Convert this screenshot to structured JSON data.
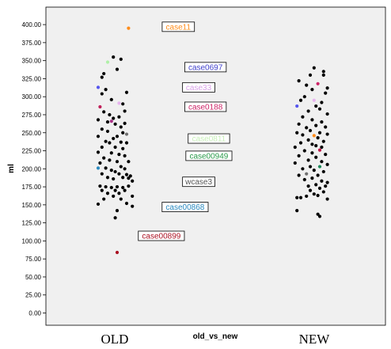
{
  "chart_data": {
    "type": "scatter",
    "title": "",
    "xlabel": "old_vs_new",
    "ylabel": "ml",
    "ylim": [
      0,
      420
    ],
    "yticks": [
      0,
      25,
      50,
      75,
      100,
      125,
      150,
      175,
      200,
      225,
      250,
      275,
      300,
      325,
      350,
      375,
      400
    ],
    "ytick_labels": [
      "0.00",
      "25.00",
      "50.00",
      "75.00",
      "100.00",
      "125.00",
      "150.00",
      "175.00",
      "200.00",
      "225.00",
      "250.00",
      "275.00",
      "300.00",
      "325.00",
      "350.00",
      "375.00",
      "400.00"
    ],
    "categories": [
      "OLD",
      "NEW"
    ],
    "grid": false,
    "series": [
      {
        "category": "OLD",
        "points": [
          {
            "j": 0.6,
            "y": 395,
            "color": "#ff8c1a"
          },
          {
            "j": -0.2,
            "y": 355,
            "color": "#000000"
          },
          {
            "j": 0.2,
            "y": 352,
            "color": "#000000"
          },
          {
            "j": -0.5,
            "y": 348,
            "color": "#b0f0a8"
          },
          {
            "j": -0.7,
            "y": 332,
            "color": "#000000"
          },
          {
            "j": -0.8,
            "y": 327,
            "color": "#000000"
          },
          {
            "j": 0.0,
            "y": 338,
            "color": "#000000"
          },
          {
            "j": -1.0,
            "y": 313,
            "color": "#5555ee"
          },
          {
            "j": -0.6,
            "y": 310,
            "color": "#000000"
          },
          {
            "j": -0.8,
            "y": 304,
            "color": "#000000"
          },
          {
            "j": 0.5,
            "y": 306,
            "color": "#000000"
          },
          {
            "j": -0.3,
            "y": 296,
            "color": "#000000"
          },
          {
            "j": 0.1,
            "y": 291,
            "color": "#e8b4f0"
          },
          {
            "j": -0.9,
            "y": 286,
            "color": "#c0205a"
          },
          {
            "j": 0.3,
            "y": 290,
            "color": "#000000"
          },
          {
            "j": -0.7,
            "y": 279,
            "color": "#000000"
          },
          {
            "j": -0.4,
            "y": 275,
            "color": "#000000"
          },
          {
            "j": 0.4,
            "y": 280,
            "color": "#000000"
          },
          {
            "j": -1.0,
            "y": 268,
            "color": "#000000"
          },
          {
            "j": -0.2,
            "y": 270,
            "color": "#000000"
          },
          {
            "j": 0.1,
            "y": 272,
            "color": "#000000"
          },
          {
            "j": -0.5,
            "y": 265,
            "color": "#000000"
          },
          {
            "j": -0.3,
            "y": 266,
            "color": "#aa3388"
          },
          {
            "j": 0.4,
            "y": 263,
            "color": "#000000"
          },
          {
            "j": -0.1,
            "y": 262,
            "color": "#000000"
          },
          {
            "j": 0.2,
            "y": 258,
            "color": "#000000"
          },
          {
            "j": -0.8,
            "y": 255,
            "color": "#000000"
          },
          {
            "j": -0.5,
            "y": 252,
            "color": "#000000"
          },
          {
            "j": 0.3,
            "y": 250,
            "color": "#000000"
          },
          {
            "j": 0.5,
            "y": 248,
            "color": "#707070"
          },
          {
            "j": -1.0,
            "y": 245,
            "color": "#000000"
          },
          {
            "j": -0.2,
            "y": 242,
            "color": "#000000"
          },
          {
            "j": 0.0,
            "y": 245,
            "color": "#000000"
          },
          {
            "j": -0.6,
            "y": 238,
            "color": "#000000"
          },
          {
            "j": -0.4,
            "y": 236,
            "color": "#000000"
          },
          {
            "j": 0.2,
            "y": 237,
            "color": "#000000"
          },
          {
            "j": 0.5,
            "y": 236,
            "color": "#000000"
          },
          {
            "j": -0.8,
            "y": 230,
            "color": "#000000"
          },
          {
            "j": -0.1,
            "y": 230,
            "color": "#000000"
          },
          {
            "j": 0.3,
            "y": 228,
            "color": "#000000"
          },
          {
            "j": -1.0,
            "y": 223,
            "color": "#000000"
          },
          {
            "j": -0.3,
            "y": 222,
            "color": "#000000"
          },
          {
            "j": 0.1,
            "y": 220,
            "color": "#000000"
          },
          {
            "j": -0.7,
            "y": 215,
            "color": "#000000"
          },
          {
            "j": 0.4,
            "y": 218,
            "color": "#000000"
          },
          {
            "j": -0.4,
            "y": 212,
            "color": "#000000"
          },
          {
            "j": 0.0,
            "y": 210,
            "color": "#000000"
          },
          {
            "j": -0.9,
            "y": 208,
            "color": "#000000"
          },
          {
            "j": 0.6,
            "y": 210,
            "color": "#000000"
          },
          {
            "j": -1.0,
            "y": 201,
            "color": "#2a8ac0"
          },
          {
            "j": -0.6,
            "y": 201,
            "color": "#000000"
          },
          {
            "j": 0.2,
            "y": 203,
            "color": "#000000"
          },
          {
            "j": -0.3,
            "y": 198,
            "color": "#000000"
          },
          {
            "j": 0.4,
            "y": 200,
            "color": "#000000"
          },
          {
            "j": -0.1,
            "y": 196,
            "color": "#000000"
          },
          {
            "j": -0.8,
            "y": 193,
            "color": "#000000"
          },
          {
            "j": 0.1,
            "y": 193,
            "color": "#000000"
          },
          {
            "j": 0.5,
            "y": 192,
            "color": "#000000"
          },
          {
            "j": 0.7,
            "y": 190,
            "color": "#000000"
          },
          {
            "j": -0.5,
            "y": 188,
            "color": "#000000"
          },
          {
            "j": 0.3,
            "y": 188,
            "color": "#000000"
          },
          {
            "j": 0.6,
            "y": 187,
            "color": "#000000"
          },
          {
            "j": -0.2,
            "y": 186,
            "color": "#000000"
          },
          {
            "j": 0.8,
            "y": 183,
            "color": "#000000"
          },
          {
            "j": -0.9,
            "y": 176,
            "color": "#000000"
          },
          {
            "j": -0.6,
            "y": 175,
            "color": "#000000"
          },
          {
            "j": -0.3,
            "y": 174,
            "color": "#000000"
          },
          {
            "j": 0.0,
            "y": 175,
            "color": "#000000"
          },
          {
            "j": 0.3,
            "y": 174,
            "color": "#000000"
          },
          {
            "j": 0.6,
            "y": 176,
            "color": "#000000"
          },
          {
            "j": -0.8,
            "y": 170,
            "color": "#000000"
          },
          {
            "j": -0.1,
            "y": 170,
            "color": "#000000"
          },
          {
            "j": 0.4,
            "y": 170,
            "color": "#000000"
          },
          {
            "j": -0.5,
            "y": 166,
            "color": "#000000"
          },
          {
            "j": 0.1,
            "y": 166,
            "color": "#000000"
          },
          {
            "j": -0.2,
            "y": 162,
            "color": "#000000"
          },
          {
            "j": 0.8,
            "y": 162,
            "color": "#000000"
          },
          {
            "j": -0.7,
            "y": 158,
            "color": "#000000"
          },
          {
            "j": 0.2,
            "y": 158,
            "color": "#000000"
          },
          {
            "j": -1.0,
            "y": 151,
            "color": "#000000"
          },
          {
            "j": 0.5,
            "y": 152,
            "color": "#000000"
          },
          {
            "j": 0.8,
            "y": 148,
            "color": "#000000"
          },
          {
            "j": 0.0,
            "y": 142,
            "color": "#000000"
          },
          {
            "j": -0.1,
            "y": 132,
            "color": "#000000"
          },
          {
            "j": 0.0,
            "y": 84,
            "color": "#aa1122"
          }
        ]
      },
      {
        "category": "NEW",
        "points": [
          {
            "j": 0.2,
            "y": 340,
            "color": "#000000"
          },
          {
            "j": 0.7,
            "y": 335,
            "color": "#000000"
          },
          {
            "j": 0.7,
            "y": 330,
            "color": "#000000"
          },
          {
            "j": 0.0,
            "y": 330,
            "color": "#000000"
          },
          {
            "j": -0.6,
            "y": 322,
            "color": "#000000"
          },
          {
            "j": 0.4,
            "y": 318,
            "color": "#cc2266"
          },
          {
            "j": -0.2,
            "y": 316,
            "color": "#000000"
          },
          {
            "j": 0.9,
            "y": 312,
            "color": "#000000"
          },
          {
            "j": 0.1,
            "y": 310,
            "color": "#000000"
          },
          {
            "j": 0.8,
            "y": 305,
            "color": "#000000"
          },
          {
            "j": -0.3,
            "y": 300,
            "color": "#000000"
          },
          {
            "j": 0.2,
            "y": 295,
            "color": "#e8b4f0"
          },
          {
            "j": -0.5,
            "y": 295,
            "color": "#000000"
          },
          {
            "j": 0.6,
            "y": 292,
            "color": "#000000"
          },
          {
            "j": -0.7,
            "y": 287,
            "color": "#5555ee"
          },
          {
            "j": 0.3,
            "y": 287,
            "color": "#000000"
          },
          {
            "j": 0.5,
            "y": 283,
            "color": "#000000"
          },
          {
            "j": -0.1,
            "y": 280,
            "color": "#000000"
          },
          {
            "j": 0.9,
            "y": 276,
            "color": "#000000"
          },
          {
            "j": -0.4,
            "y": 272,
            "color": "#000000"
          },
          {
            "j": 0.1,
            "y": 268,
            "color": "#000000"
          },
          {
            "j": 0.6,
            "y": 265,
            "color": "#000000"
          },
          {
            "j": -0.6,
            "y": 262,
            "color": "#000000"
          },
          {
            "j": 0.3,
            "y": 260,
            "color": "#000000"
          },
          {
            "j": 0.8,
            "y": 258,
            "color": "#000000"
          },
          {
            "j": -0.2,
            "y": 257,
            "color": "#000000"
          },
          {
            "j": 0.0,
            "y": 253,
            "color": "#000000"
          },
          {
            "j": -0.7,
            "y": 250,
            "color": "#000000"
          },
          {
            "j": 0.5,
            "y": 250,
            "color": "#000000"
          },
          {
            "j": -0.4,
            "y": 247,
            "color": "#000000"
          },
          {
            "j": 0.2,
            "y": 246,
            "color": "#ff8c1a"
          },
          {
            "j": 0.9,
            "y": 248,
            "color": "#000000"
          },
          {
            "j": 0.4,
            "y": 243,
            "color": "#000000"
          },
          {
            "j": -0.1,
            "y": 240,
            "color": "#000000"
          },
          {
            "j": 0.7,
            "y": 238,
            "color": "#000000"
          },
          {
            "j": -0.5,
            "y": 236,
            "color": "#000000"
          },
          {
            "j": 0.1,
            "y": 234,
            "color": "#000000"
          },
          {
            "j": 0.3,
            "y": 232,
            "color": "#000000"
          },
          {
            "j": -0.8,
            "y": 230,
            "color": "#000000"
          },
          {
            "j": 0.6,
            "y": 230,
            "color": "#000000"
          },
          {
            "j": 0.5,
            "y": 226,
            "color": "#c01848"
          },
          {
            "j": -0.3,
            "y": 225,
            "color": "#000000"
          },
          {
            "j": 0.1,
            "y": 222,
            "color": "#000000"
          },
          {
            "j": 0.8,
            "y": 220,
            "color": "#000000"
          },
          {
            "j": -0.6,
            "y": 218,
            "color": "#000000"
          },
          {
            "j": 0.3,
            "y": 216,
            "color": "#000000"
          },
          {
            "j": -0.1,
            "y": 212,
            "color": "#000000"
          },
          {
            "j": 0.6,
            "y": 210,
            "color": "#000000"
          },
          {
            "j": -0.8,
            "y": 208,
            "color": "#000000"
          },
          {
            "j": 0.9,
            "y": 206,
            "color": "#000000"
          },
          {
            "j": 0.5,
            "y": 203,
            "color": "#1a8a5a"
          },
          {
            "j": 0.0,
            "y": 203,
            "color": "#000000"
          },
          {
            "j": -0.4,
            "y": 200,
            "color": "#000000"
          },
          {
            "j": 0.2,
            "y": 198,
            "color": "#000000"
          },
          {
            "j": 0.7,
            "y": 196,
            "color": "#000000"
          },
          {
            "j": -0.2,
            "y": 193,
            "color": "#707070"
          },
          {
            "j": -0.6,
            "y": 191,
            "color": "#000000"
          },
          {
            "j": 0.4,
            "y": 191,
            "color": "#000000"
          },
          {
            "j": 0.1,
            "y": 187,
            "color": "#000000"
          },
          {
            "j": -0.3,
            "y": 185,
            "color": "#000000"
          },
          {
            "j": 0.6,
            "y": 183,
            "color": "#000000"
          },
          {
            "j": 0.9,
            "y": 181,
            "color": "#000000"
          },
          {
            "j": 0.3,
            "y": 178,
            "color": "#000000"
          },
          {
            "j": -0.1,
            "y": 176,
            "color": "#000000"
          },
          {
            "j": 0.8,
            "y": 176,
            "color": "#000000"
          },
          {
            "j": 0.5,
            "y": 173,
            "color": "#000000"
          },
          {
            "j": 0.0,
            "y": 170,
            "color": "#000000"
          },
          {
            "j": 0.7,
            "y": 168,
            "color": "#000000"
          },
          {
            "j": 0.2,
            "y": 165,
            "color": "#000000"
          },
          {
            "j": 0.4,
            "y": 163,
            "color": "#000000"
          },
          {
            "j": -0.7,
            "y": 160,
            "color": "#000000"
          },
          {
            "j": -0.5,
            "y": 160,
            "color": "#000000"
          },
          {
            "j": -0.2,
            "y": 162,
            "color": "#000000"
          },
          {
            "j": 0.9,
            "y": 158,
            "color": "#000000"
          },
          {
            "j": -0.7,
            "y": 142,
            "color": "#000000"
          },
          {
            "j": 0.4,
            "y": 137,
            "color": "#000000"
          },
          {
            "j": 0.5,
            "y": 134,
            "color": "#000000"
          }
        ]
      }
    ],
    "annotations": [
      {
        "text": "case11",
        "y": 397,
        "cx": 0.39,
        "color": "#ff8c1a"
      },
      {
        "text": "case0697",
        "y": 341,
        "cx": 0.47,
        "color": "#4040cc"
      },
      {
        "text": "case33",
        "y": 313,
        "cx": 0.45,
        "color": "#d8a0e8"
      },
      {
        "text": "case0188",
        "y": 286,
        "cx": 0.47,
        "color": "#cc2266"
      },
      {
        "text": "case0811",
        "y": 242,
        "cx": 0.48,
        "color": "#c8f0b8"
      },
      {
        "text": "case00949",
        "y": 218,
        "cx": 0.48,
        "color": "#2a9a4a"
      },
      {
        "text": "wcase3",
        "y": 182,
        "cx": 0.45,
        "color": "#555555"
      },
      {
        "text": "case00868",
        "y": 147,
        "cx": 0.41,
        "color": "#2a8ac0"
      },
      {
        "text": "case00899",
        "y": 107,
        "cx": 0.34,
        "color": "#aa1122"
      }
    ]
  }
}
